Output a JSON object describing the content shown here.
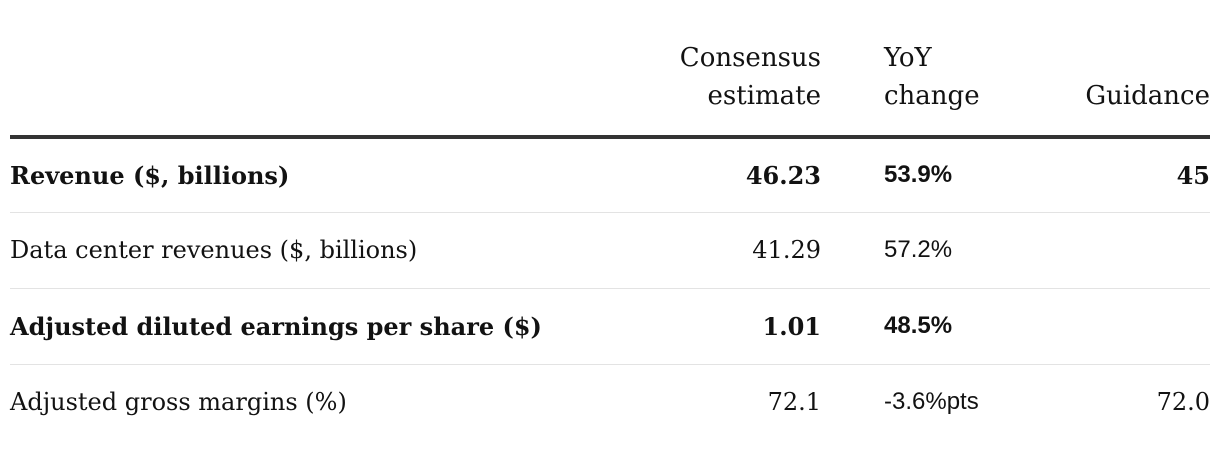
{
  "columns": {
    "estimate": [
      "Consensus",
      "estimate"
    ],
    "yoy": [
      "YoY",
      "change"
    ],
    "guidance": [
      "Guidance"
    ]
  },
  "rows": [
    {
      "label": "Revenue ($, billions)",
      "estimate": "46.23",
      "yoy": "53.9%",
      "guidance": "45",
      "bold": true
    },
    {
      "label": "Data center revenues ($, billions)",
      "estimate": "41.29",
      "yoy": "57.2%",
      "guidance": "",
      "bold": false
    },
    {
      "label": "Adjusted diluted earnings per share ($)",
      "estimate": "1.01",
      "yoy": "48.5%",
      "guidance": "",
      "bold": true
    },
    {
      "label": "Adjusted gross margins (%)",
      "estimate": "72.1",
      "yoy": "-3.6%pts",
      "guidance": "72.0",
      "bold": false
    }
  ]
}
